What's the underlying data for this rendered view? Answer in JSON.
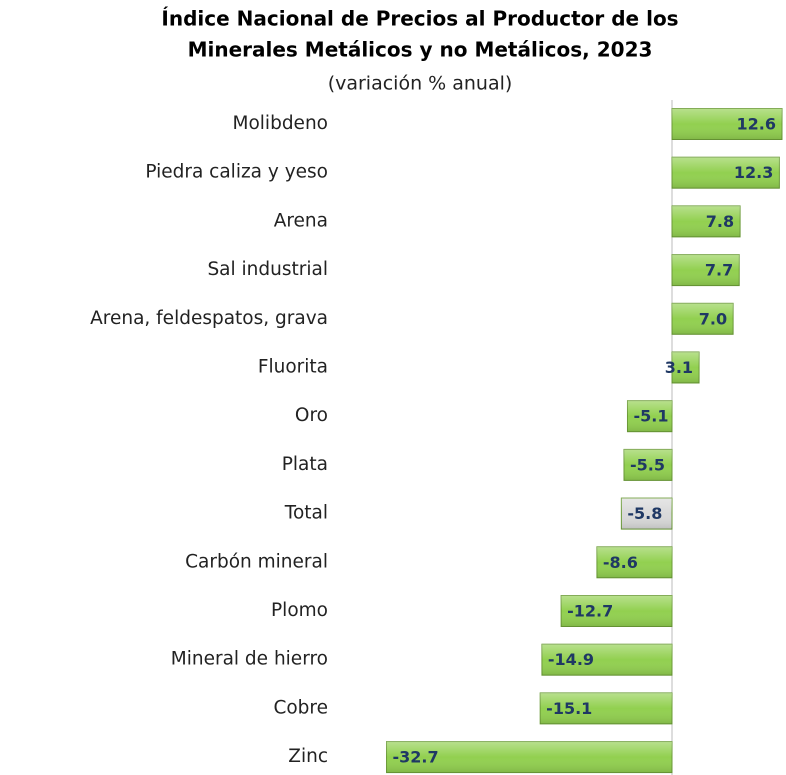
{
  "chart_data": {
    "type": "bar",
    "orientation": "horizontal",
    "title": [
      "Índice Nacional de Precios al Productor de los",
      "Minerales Metálicos y no Metálicos, 2023"
    ],
    "subtitle": "(variación % anual)",
    "categories": [
      "Molibdeno",
      "Piedra caliza y yeso",
      "Arena",
      "Sal industrial",
      "Arena, feldespatos, grava",
      "Fluorita",
      "Oro",
      "Plata",
      "Total",
      "Carbón mineral",
      "Plomo",
      "Mineral de hierro",
      "Cobre",
      "Zinc"
    ],
    "values": [
      12.6,
      12.3,
      7.8,
      7.7,
      7.0,
      3.1,
      -5.1,
      -5.5,
      -5.8,
      -8.6,
      -12.7,
      -14.9,
      -15.1,
      -32.7
    ],
    "value_labels": [
      "12.6",
      "12.3",
      "7.8",
      "7.7",
      "7.0",
      "3.1",
      "-5.1",
      "-5.5",
      "-5.8",
      "-8.6",
      "-12.7",
      "-14.9",
      "-15.1",
      "-32.7"
    ],
    "colors": [
      "#92d050",
      "#92d050",
      "#92d050",
      "#92d050",
      "#92d050",
      "#92d050",
      "#92d050",
      "#92d050",
      "#d9d9d9",
      "#92d050",
      "#92d050",
      "#92d050",
      "#92d050",
      "#92d050"
    ]
  }
}
